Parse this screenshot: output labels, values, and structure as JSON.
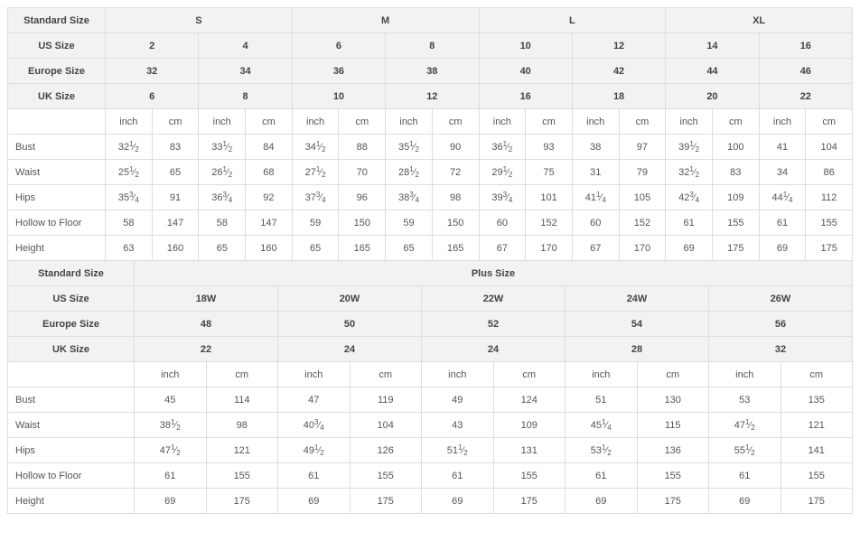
{
  "colors": {
    "border": "#dddddd",
    "header_bg": "#f2f2f2",
    "text": "#555555",
    "header_text": "#444444"
  },
  "font_size_pt": 11,
  "labels": {
    "standard_size": "Standard Size",
    "us_size": "US Size",
    "europe_size": "Europe Size",
    "uk_size": "UK Size",
    "plus_size": "Plus Size",
    "inch": "inch",
    "cm": "cm"
  },
  "top": {
    "std": [
      "S",
      "M",
      "L",
      "XL"
    ],
    "us": [
      "2",
      "4",
      "6",
      "8",
      "10",
      "12",
      "14",
      "16"
    ],
    "eu": [
      "32",
      "34",
      "36",
      "38",
      "40",
      "42",
      "44",
      "46"
    ],
    "uk": [
      "6",
      "8",
      "10",
      "12",
      "16",
      "18",
      "20",
      "22"
    ],
    "measures": [
      {
        "name": "Bust",
        "cells": [
          {
            "in": "32 1/2",
            "cm": "83"
          },
          {
            "in": "33 1/2",
            "cm": "84"
          },
          {
            "in": "34 1/2",
            "cm": "88"
          },
          {
            "in": "35 1/2",
            "cm": "90"
          },
          {
            "in": "36 1/2",
            "cm": "93"
          },
          {
            "in": "38",
            "cm": "97"
          },
          {
            "in": "39 1/2",
            "cm": "100"
          },
          {
            "in": "41",
            "cm": "104"
          }
        ]
      },
      {
        "name": "Waist",
        "cells": [
          {
            "in": "25 1/2",
            "cm": "65"
          },
          {
            "in": "26 1/2",
            "cm": "68"
          },
          {
            "in": "27 1/2",
            "cm": "70"
          },
          {
            "in": "28 1/2",
            "cm": "72"
          },
          {
            "in": "29 1/2",
            "cm": "75"
          },
          {
            "in": "31",
            "cm": "79"
          },
          {
            "in": "32 1/2",
            "cm": "83"
          },
          {
            "in": "34",
            "cm": "86"
          }
        ]
      },
      {
        "name": "Hips",
        "cells": [
          {
            "in": "35 3/4",
            "cm": "91"
          },
          {
            "in": "36 3/4",
            "cm": "92"
          },
          {
            "in": "37 3/4",
            "cm": "96"
          },
          {
            "in": "38 3/4",
            "cm": "98"
          },
          {
            "in": "39 3/4",
            "cm": "101"
          },
          {
            "in": "41 1/4",
            "cm": "105"
          },
          {
            "in": "42 3/4",
            "cm": "109"
          },
          {
            "in": "44 1/4",
            "cm": "112"
          }
        ]
      },
      {
        "name": "Hollow to Floor",
        "cells": [
          {
            "in": "58",
            "cm": "147"
          },
          {
            "in": "58",
            "cm": "147"
          },
          {
            "in": "59",
            "cm": "150"
          },
          {
            "in": "59",
            "cm": "150"
          },
          {
            "in": "60",
            "cm": "152"
          },
          {
            "in": "60",
            "cm": "152"
          },
          {
            "in": "61",
            "cm": "155"
          },
          {
            "in": "61",
            "cm": "155"
          }
        ]
      },
      {
        "name": "Height",
        "cells": [
          {
            "in": "63",
            "cm": "160"
          },
          {
            "in": "65",
            "cm": "160"
          },
          {
            "in": "65",
            "cm": "165"
          },
          {
            "in": "65",
            "cm": "165"
          },
          {
            "in": "67",
            "cm": "170"
          },
          {
            "in": "67",
            "cm": "170"
          },
          {
            "in": "69",
            "cm": "175"
          },
          {
            "in": "69",
            "cm": "175"
          }
        ]
      }
    ]
  },
  "bottom": {
    "us": [
      "18W",
      "20W",
      "22W",
      "24W",
      "26W"
    ],
    "eu": [
      "48",
      "50",
      "52",
      "54",
      "56"
    ],
    "uk": [
      "22",
      "24",
      "24",
      "28",
      "32"
    ],
    "measures": [
      {
        "name": "Bust",
        "cells": [
          {
            "in": "45",
            "cm": "114"
          },
          {
            "in": "47",
            "cm": "119"
          },
          {
            "in": "49",
            "cm": "124"
          },
          {
            "in": "51",
            "cm": "130"
          },
          {
            "in": "53",
            "cm": "135"
          }
        ]
      },
      {
        "name": "Waist",
        "cells": [
          {
            "in": "38 1/2",
            "cm": "98"
          },
          {
            "in": "40 3/4",
            "cm": "104"
          },
          {
            "in": "43",
            "cm": "109"
          },
          {
            "in": "45 1/4",
            "cm": "115"
          },
          {
            "in": "47 1/2",
            "cm": "121"
          }
        ]
      },
      {
        "name": "Hips",
        "cells": [
          {
            "in": "47 1/2",
            "cm": "121"
          },
          {
            "in": "49 1/2",
            "cm": "126"
          },
          {
            "in": "51 1/2",
            "cm": "131"
          },
          {
            "in": "53 1/2",
            "cm": "136"
          },
          {
            "in": "55 1/2",
            "cm": "141"
          }
        ]
      },
      {
        "name": "Hollow to Floor",
        "cells": [
          {
            "in": "61",
            "cm": "155"
          },
          {
            "in": "61",
            "cm": "155"
          },
          {
            "in": "61",
            "cm": "155"
          },
          {
            "in": "61",
            "cm": "155"
          },
          {
            "in": "61",
            "cm": "155"
          }
        ]
      },
      {
        "name": "Height",
        "cells": [
          {
            "in": "69",
            "cm": "175"
          },
          {
            "in": "69",
            "cm": "175"
          },
          {
            "in": "69",
            "cm": "175"
          },
          {
            "in": "69",
            "cm": "175"
          },
          {
            "in": "69",
            "cm": "175"
          }
        ]
      }
    ]
  }
}
